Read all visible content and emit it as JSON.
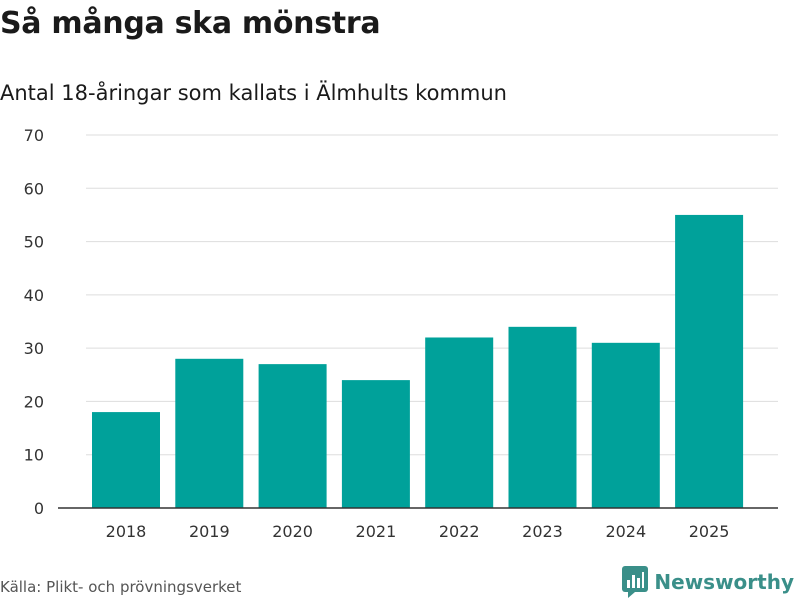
{
  "title": "Så många ska mönstra",
  "subtitle": "Antal 18-åringar som kallats i Älmhults kommun",
  "source": "Källa: Plikt- och prövningsverket",
  "brand": {
    "name": "Newsworthy",
    "icon": "newsworthy-logo-icon",
    "color": "#3a8f89"
  },
  "chart_data": {
    "type": "bar",
    "title": "Så många ska mönstra",
    "subtitle": "Antal 18-åringar som kallats i Älmhults kommun",
    "xlabel": "",
    "ylabel": "",
    "categories": [
      "2018",
      "2019",
      "2020",
      "2021",
      "2022",
      "2023",
      "2024",
      "2025"
    ],
    "values": [
      18,
      28,
      27,
      24,
      32,
      34,
      31,
      55
    ],
    "ylim": [
      0,
      70
    ],
    "yticks": [
      0,
      10,
      20,
      30,
      40,
      50,
      60,
      70
    ],
    "grid": true,
    "bar_color": "#00a19a",
    "grid_color": "#dddddd",
    "axis_color": "#333333"
  }
}
